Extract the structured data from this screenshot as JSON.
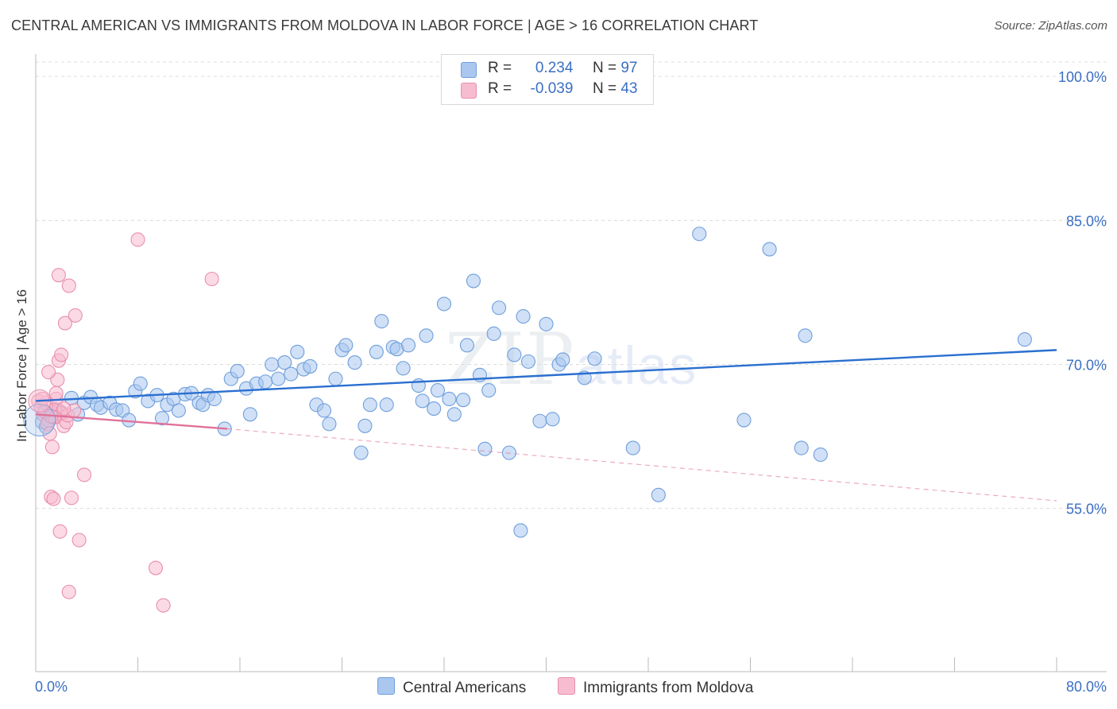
{
  "title": "CENTRAL AMERICAN VS IMMIGRANTS FROM MOLDOVA IN LABOR FORCE | AGE > 16 CORRELATION CHART",
  "source": "Source: ZipAtlas.com",
  "watermark": {
    "zip": "ZIP",
    "atlas": "atlas"
  },
  "legend": {
    "r_label": "R =",
    "n_label": "N =",
    "rows": [
      {
        "r": "0.234",
        "n": "97",
        "color": "#aac7ef",
        "border": "#6f9fdc"
      },
      {
        "r": "-0.039",
        "n": "43",
        "color": "#f7bcd0",
        "border": "#e88fac"
      }
    ]
  },
  "bottom_legend": {
    "series1": "Central Americans",
    "series2": "Immigrants from Moldova"
  },
  "chart_data": {
    "type": "scatter",
    "title": "CENTRAL AMERICAN VS IMMIGRANTS FROM MOLDOVA IN LABOR FORCE | AGE > 16 CORRELATION CHART",
    "xlabel": "",
    "ylabel": "In Labor Force | Age > 16",
    "xlim": [
      0,
      80
    ],
    "ylim": [
      38,
      102
    ],
    "x_tick_labels": [
      "0.0%",
      "80.0%"
    ],
    "y_ticks": [
      55,
      70,
      85,
      100
    ],
    "y_tick_labels": [
      "55.0%",
      "70.0%",
      "85.0%",
      "100.0%"
    ],
    "grid": true,
    "legend_position": "top-center",
    "series": [
      {
        "name": "Central Americans",
        "color": "#6f9fdc",
        "fill": "#aac7ef",
        "trend": {
          "x": [
            0,
            80
          ],
          "y": [
            66.2,
            71.5
          ],
          "style": "solid",
          "color": "#2a6fd0"
        },
        "points": [
          [
            0.5,
            64.0
          ],
          [
            0.8,
            63.5
          ],
          [
            1.0,
            65.0
          ],
          [
            1.3,
            64.5
          ],
          [
            1.6,
            65.2
          ],
          [
            2.0,
            65.0
          ],
          [
            2.8,
            66.5
          ],
          [
            3.3,
            64.8
          ],
          [
            3.8,
            66.0
          ],
          [
            4.3,
            66.6
          ],
          [
            4.8,
            65.8
          ],
          [
            5.1,
            65.5
          ],
          [
            5.8,
            66.0
          ],
          [
            6.3,
            65.3
          ],
          [
            6.8,
            65.2
          ],
          [
            7.3,
            64.2
          ],
          [
            7.8,
            67.2
          ],
          [
            8.2,
            68.0
          ],
          [
            8.8,
            66.2
          ],
          [
            9.5,
            66.8
          ],
          [
            9.9,
            64.4
          ],
          [
            10.3,
            65.8
          ],
          [
            10.8,
            66.4
          ],
          [
            11.2,
            65.2
          ],
          [
            11.7,
            66.9
          ],
          [
            12.2,
            67.0
          ],
          [
            12.8,
            66.0
          ],
          [
            13.1,
            65.8
          ],
          [
            13.5,
            66.8
          ],
          [
            14.0,
            66.4
          ],
          [
            14.8,
            63.3
          ],
          [
            15.3,
            68.5
          ],
          [
            15.8,
            69.3
          ],
          [
            16.5,
            67.5
          ],
          [
            16.8,
            64.8
          ],
          [
            17.3,
            68.0
          ],
          [
            18.0,
            68.2
          ],
          [
            18.5,
            70.0
          ],
          [
            19.0,
            68.5
          ],
          [
            19.5,
            70.2
          ],
          [
            20.0,
            69.0
          ],
          [
            20.5,
            71.3
          ],
          [
            21.0,
            69.5
          ],
          [
            21.5,
            69.8
          ],
          [
            22.0,
            65.8
          ],
          [
            22.6,
            65.2
          ],
          [
            23.0,
            63.8
          ],
          [
            23.5,
            68.5
          ],
          [
            24.0,
            71.5
          ],
          [
            24.3,
            72.0
          ],
          [
            25.0,
            70.2
          ],
          [
            25.5,
            60.8
          ],
          [
            25.8,
            63.6
          ],
          [
            26.2,
            65.8
          ],
          [
            26.7,
            71.3
          ],
          [
            27.1,
            74.5
          ],
          [
            27.5,
            65.8
          ],
          [
            28.0,
            71.8
          ],
          [
            28.3,
            71.6
          ],
          [
            28.8,
            69.6
          ],
          [
            29.2,
            72.0
          ],
          [
            30.0,
            67.8
          ],
          [
            30.3,
            66.2
          ],
          [
            30.6,
            73.0
          ],
          [
            31.2,
            65.4
          ],
          [
            31.5,
            67.3
          ],
          [
            32.0,
            76.3
          ],
          [
            32.4,
            66.4
          ],
          [
            32.8,
            64.8
          ],
          [
            33.5,
            66.3
          ],
          [
            33.8,
            72.0
          ],
          [
            34.3,
            78.7
          ],
          [
            34.8,
            68.9
          ],
          [
            35.2,
            61.2
          ],
          [
            35.5,
            67.3
          ],
          [
            35.9,
            73.2
          ],
          [
            36.3,
            75.9
          ],
          [
            37.1,
            60.8
          ],
          [
            37.5,
            71.0
          ],
          [
            38.2,
            75.0
          ],
          [
            38.6,
            70.3
          ],
          [
            38.0,
            52.7
          ],
          [
            39.5,
            64.1
          ],
          [
            40.0,
            74.2
          ],
          [
            40.5,
            64.3
          ],
          [
            41.0,
            70.0
          ],
          [
            41.3,
            70.5
          ],
          [
            43.0,
            68.6
          ],
          [
            43.8,
            70.6
          ],
          [
            46.8,
            61.3
          ],
          [
            48.8,
            56.4
          ],
          [
            52.0,
            83.6
          ],
          [
            55.5,
            64.2
          ],
          [
            57.5,
            82.0
          ],
          [
            60.0,
            61.3
          ],
          [
            60.3,
            73.0
          ],
          [
            61.5,
            60.6
          ],
          [
            77.5,
            72.6
          ]
        ]
      },
      {
        "name": "Immigrants from Moldova",
        "color": "#e88fac",
        "fill": "#f7bcd0",
        "trend": {
          "x": [
            0,
            15
          ],
          "y": [
            64.8,
            63.3
          ],
          "style": "solid",
          "color": "#e0729a",
          "extension": {
            "x": [
              15,
              80
            ],
            "y": [
              63.3,
              55.8
            ],
            "style": "dashed"
          }
        },
        "points": [
          [
            0.2,
            66.2
          ],
          [
            0.4,
            65.6
          ],
          [
            0.6,
            64.8
          ],
          [
            0.8,
            66.0
          ],
          [
            1.0,
            64.2
          ],
          [
            1.2,
            65.0
          ],
          [
            1.4,
            64.6
          ],
          [
            1.6,
            66.4
          ],
          [
            1.8,
            65.2
          ],
          [
            2.0,
            64.9
          ],
          [
            2.2,
            63.6
          ],
          [
            2.4,
            64.0
          ],
          [
            0.9,
            63.8
          ],
          [
            1.1,
            62.8
          ],
          [
            1.3,
            61.4
          ],
          [
            1.5,
            65.3
          ],
          [
            1.6,
            67.0
          ],
          [
            1.7,
            68.4
          ],
          [
            1.8,
            70.4
          ],
          [
            2.0,
            71.0
          ],
          [
            1.0,
            69.2
          ],
          [
            1.8,
            79.3
          ],
          [
            2.6,
            78.2
          ],
          [
            2.3,
            74.3
          ],
          [
            3.1,
            75.1
          ],
          [
            8.0,
            83.0
          ],
          [
            13.8,
            78.9
          ],
          [
            3.8,
            58.5
          ],
          [
            1.2,
            56.2
          ],
          [
            1.4,
            56.0
          ],
          [
            2.8,
            56.1
          ],
          [
            1.9,
            52.6
          ],
          [
            3.4,
            51.7
          ],
          [
            9.4,
            48.8
          ],
          [
            2.6,
            46.3
          ],
          [
            10.0,
            44.9
          ],
          [
            1.5,
            64.5
          ],
          [
            0.7,
            65.1
          ],
          [
            2.5,
            64.7
          ],
          [
            3.0,
            65.2
          ],
          [
            2.2,
            65.4
          ],
          [
            1.2,
            64.6
          ],
          [
            0.5,
            66.4
          ]
        ]
      }
    ]
  }
}
